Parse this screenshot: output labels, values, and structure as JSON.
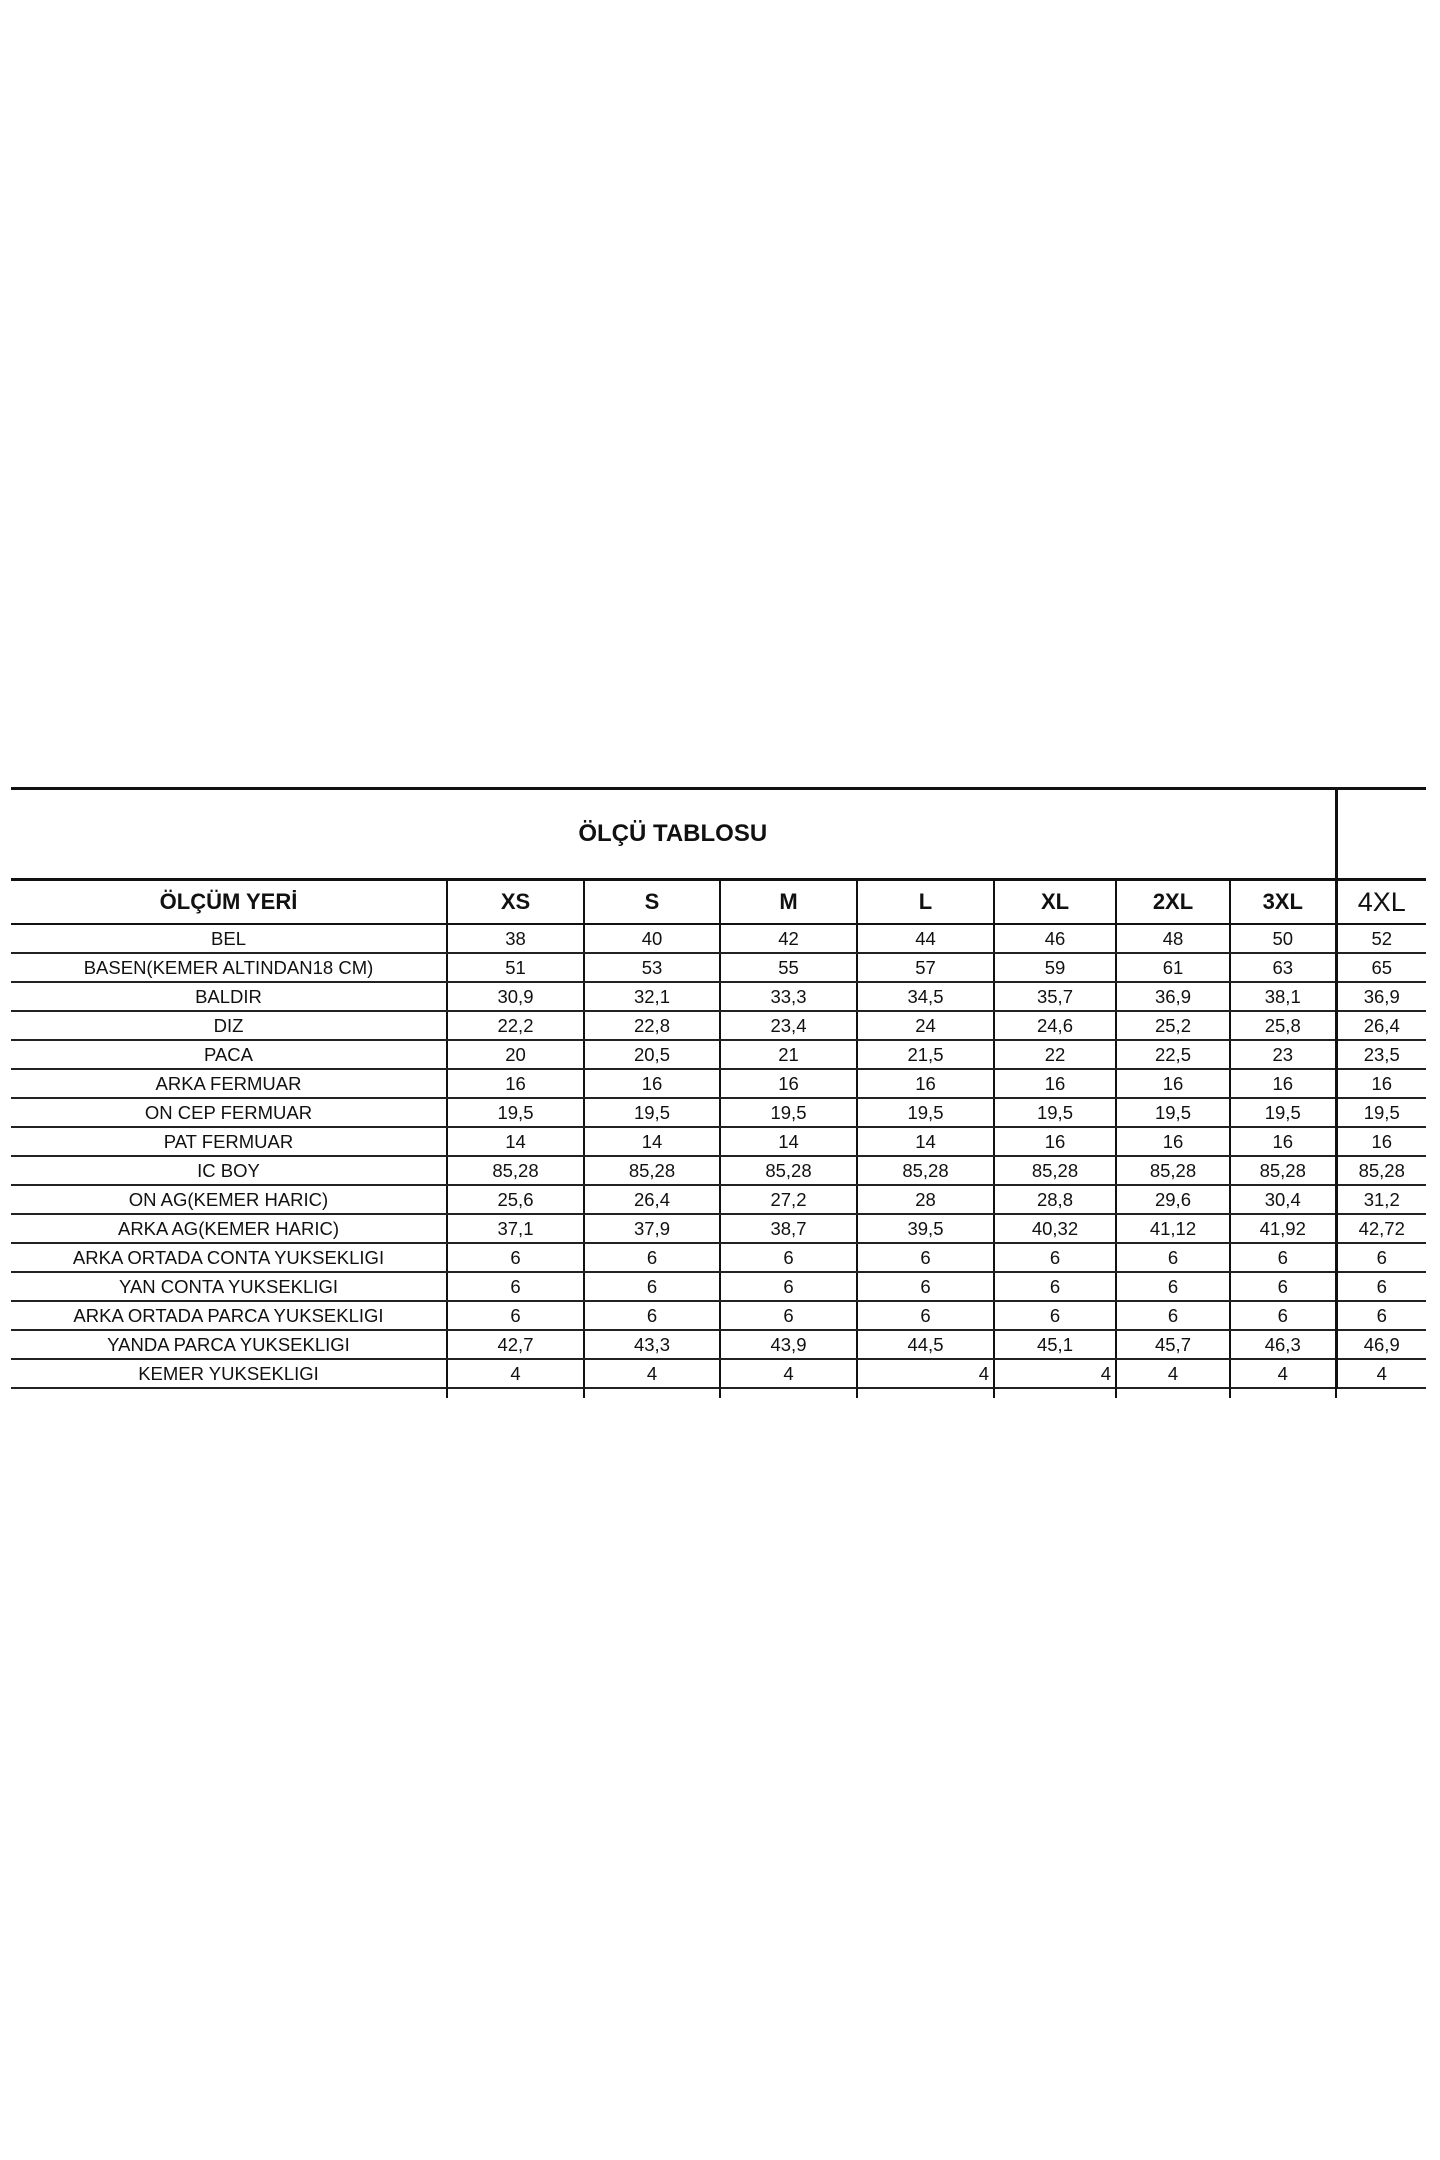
{
  "title": "ÖLÇÜ TABLOSU",
  "header": [
    "ÖLÇÜM YERİ",
    "XS",
    "S",
    "M",
    "L",
    "XL",
    "2XL",
    "3XL",
    "4XL"
  ],
  "rows": [
    [
      "BEL",
      "38",
      "40",
      "42",
      "44",
      "46",
      "48",
      "50",
      "52"
    ],
    [
      "BASEN(KEMER ALTINDAN18 CM)",
      "51",
      "53",
      "55",
      "57",
      "59",
      "61",
      "63",
      "65"
    ],
    [
      "BALDIR",
      "30,9",
      "32,1",
      "33,3",
      "34,5",
      "35,7",
      "36,9",
      "38,1",
      "36,9"
    ],
    [
      "DIZ",
      "22,2",
      "22,8",
      "23,4",
      "24",
      "24,6",
      "25,2",
      "25,8",
      "26,4"
    ],
    [
      "PACA",
      "20",
      "20,5",
      "21",
      "21,5",
      "22",
      "22,5",
      "23",
      "23,5"
    ],
    [
      "ARKA FERMUAR",
      "16",
      "16",
      "16",
      "16",
      "16",
      "16",
      "16",
      "16"
    ],
    [
      "ON CEP FERMUAR",
      "19,5",
      "19,5",
      "19,5",
      "19,5",
      "19,5",
      "19,5",
      "19,5",
      "19,5"
    ],
    [
      "PAT FERMUAR",
      "14",
      "14",
      "14",
      "14",
      "16",
      "16",
      "16",
      "16"
    ],
    [
      "IC BOY",
      "85,28",
      "85,28",
      "85,28",
      "85,28",
      "85,28",
      "85,28",
      "85,28",
      "85,28"
    ],
    [
      "ON AG(KEMER HARIC)",
      "25,6",
      "26,4",
      "27,2",
      "28",
      "28,8",
      "29,6",
      "30,4",
      "31,2"
    ],
    [
      "ARKA AG(KEMER HARIC)",
      "37,1",
      "37,9",
      "38,7",
      "39,5",
      "40,32",
      "41,12",
      "41,92",
      "42,72"
    ],
    [
      "ARKA ORTADA CONTA YUKSEKLIGI",
      "6",
      "6",
      "6",
      "6",
      "6",
      "6",
      "6",
      "6"
    ],
    [
      "YAN CONTA YUKSEKLIGI",
      "6",
      "6",
      "6",
      "6",
      "6",
      "6",
      "6",
      "6"
    ],
    [
      "ARKA ORTADA PARCA YUKSEKLIGI",
      "6",
      "6",
      "6",
      "6",
      "6",
      "6",
      "6",
      "6"
    ],
    [
      "YANDA PARCA YUKSEKLIGI",
      "42,7",
      "43,3",
      "43,9",
      "44,5",
      "45,1",
      "45,7",
      "46,3",
      "46,9"
    ],
    [
      "KEMER YUKSEKLIGI",
      "4",
      "4",
      "4",
      "4",
      "4",
      "4",
      "4",
      "4"
    ]
  ]
}
